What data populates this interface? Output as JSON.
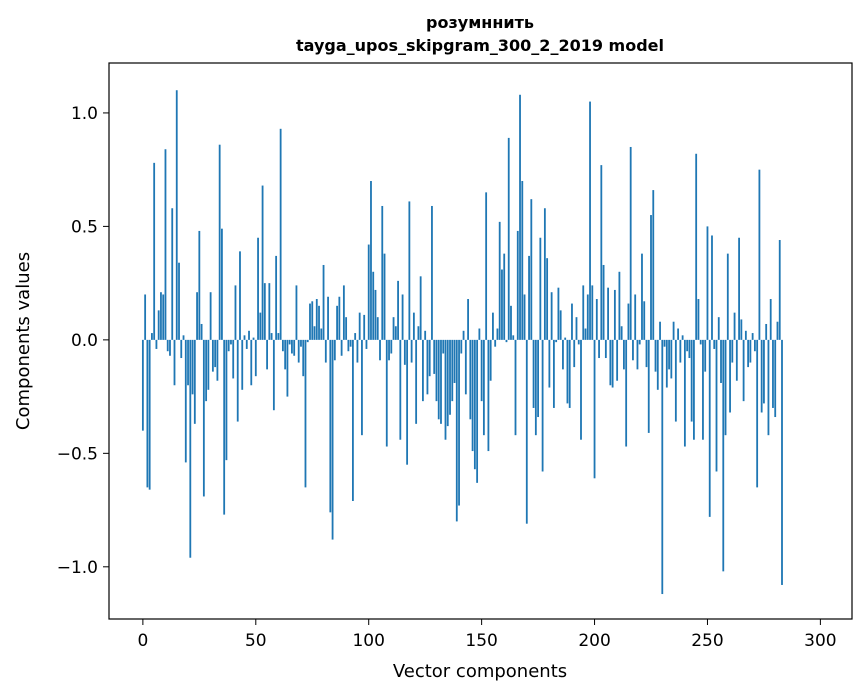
{
  "chart_data": {
    "type": "bar",
    "title": "розумннить",
    "subtitle": "tayga_upos_skipgram_300_2_2019 model",
    "xlabel": "Vector components",
    "ylabel": "Components values",
    "xlim": [
      -15,
      314
    ],
    "ylim": [
      -1.23,
      1.22
    ],
    "xticks": [
      0,
      50,
      100,
      150,
      200,
      250,
      300
    ],
    "yticks": [
      -1.0,
      -0.5,
      0.0,
      0.5,
      1.0
    ],
    "ytick_labels": [
      "−1.0",
      "−0.5",
      "0.0",
      "0.5",
      "1.0"
    ],
    "grid": false,
    "bar_color": "#1f77b4",
    "values": [
      -0.4,
      0.2,
      -0.65,
      -0.66,
      0.03,
      0.78,
      -0.04,
      0.13,
      0.21,
      0.2,
      0.84,
      -0.05,
      -0.07,
      0.58,
      -0.2,
      1.1,
      0.34,
      -0.08,
      0.02,
      -0.54,
      -0.2,
      -0.96,
      -0.24,
      -0.37,
      0.21,
      0.48,
      0.07,
      -0.69,
      -0.27,
      -0.22,
      0.21,
      -0.14,
      -0.12,
      -0.18,
      0.86,
      0.49,
      -0.77,
      -0.53,
      -0.05,
      -0.02,
      -0.17,
      0.24,
      -0.36,
      0.39,
      -0.22,
      0.02,
      -0.04,
      0.04,
      -0.2,
      0.01,
      -0.16,
      0.45,
      0.12,
      0.68,
      0.25,
      -0.13,
      0.25,
      0.03,
      -0.31,
      0.37,
      0.03,
      0.93,
      -0.05,
      -0.13,
      -0.25,
      -0.02,
      -0.06,
      -0.07,
      0.24,
      -0.1,
      -0.03,
      -0.16,
      -0.65,
      -0.01,
      0.16,
      0.17,
      0.06,
      0.18,
      0.15,
      0.05,
      0.33,
      -0.1,
      0.19,
      -0.76,
      -0.88,
      -0.09,
      0.15,
      0.19,
      -0.07,
      0.24,
      0.1,
      -0.05,
      -0.03,
      -0.71,
      0.03,
      -0.1,
      0.12,
      -0.42,
      0.11,
      -0.04,
      0.42,
      0.7,
      0.3,
      0.22,
      0.1,
      -0.09,
      0.59,
      0.38,
      -0.47,
      -0.09,
      -0.06,
      0.1,
      0.06,
      0.26,
      -0.44,
      0.2,
      -0.11,
      -0.55,
      0.61,
      -0.1,
      0.12,
      -0.37,
      0.06,
      0.28,
      -0.27,
      0.04,
      -0.24,
      -0.16,
      0.59,
      -0.15,
      -0.27,
      -0.35,
      -0.37,
      -0.06,
      -0.44,
      -0.38,
      -0.33,
      -0.27,
      -0.19,
      -0.8,
      -0.73,
      -0.06,
      0.04,
      -0.24,
      0.18,
      -0.35,
      -0.49,
      -0.57,
      -0.63,
      0.05,
      -0.27,
      -0.42,
      0.65,
      -0.49,
      -0.18,
      0.12,
      -0.03,
      0.05,
      0.52,
      0.31,
      0.38,
      -0.01,
      0.89,
      0.15,
      0.02,
      -0.42,
      0.48,
      1.08,
      0.7,
      0.2,
      -0.81,
      0.37,
      0.62,
      -0.3,
      -0.42,
      -0.34,
      0.45,
      -0.58,
      0.58,
      0.36,
      -0.21,
      0.21,
      -0.3,
      -0.01,
      0.23,
      0.13,
      -0.13,
      0.01,
      -0.28,
      -0.3,
      0.16,
      -0.12,
      0.1,
      -0.02,
      -0.44,
      0.24,
      0.05,
      0.2,
      1.05,
      0.24,
      -0.61,
      0.18,
      -0.08,
      0.77,
      0.33,
      -0.08,
      0.23,
      -0.2,
      -0.21,
      0.22,
      -0.18,
      0.3,
      0.06,
      -0.13,
      -0.47,
      0.16,
      0.85,
      -0.09,
      0.2,
      -0.13,
      -0.02,
      0.38,
      0.17,
      -0.12,
      -0.41,
      0.55,
      0.66,
      -0.14,
      -0.22,
      0.08,
      -1.12,
      -0.03,
      -0.21,
      -0.13,
      -0.17,
      0.08,
      -0.36,
      0.05,
      -0.1,
      0.02,
      -0.47,
      -0.05,
      -0.08,
      -0.36,
      -0.44,
      0.82,
      0.18,
      -0.02,
      -0.44,
      -0.14,
      0.5,
      -0.78,
      0.46,
      -0.04,
      -0.58,
      0.1,
      -0.19,
      -1.02,
      -0.42,
      0.38,
      -0.32,
      -0.1,
      0.12,
      -0.18,
      0.45,
      0.09,
      -0.27,
      0.04,
      -0.12,
      -0.1,
      0.03,
      -0.05,
      -0.65,
      0.75,
      -0.32,
      -0.28,
      0.07,
      -0.42,
      0.18,
      -0.3,
      -0.34,
      0.08,
      0.44,
      -1.08
    ]
  }
}
